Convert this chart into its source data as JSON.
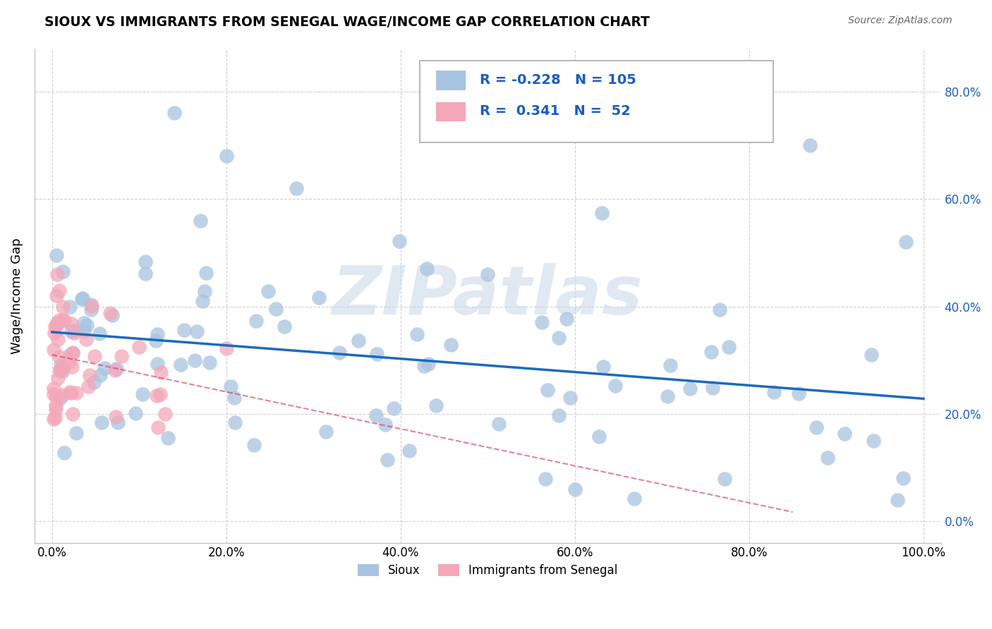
{
  "title": "SIOUX VS IMMIGRANTS FROM SENEGAL WAGE/INCOME GAP CORRELATION CHART",
  "source": "Source: ZipAtlas.com",
  "ylabel": "Wage/Income Gap",
  "watermark": "ZIPatlas",
  "sioux_R": -0.228,
  "sioux_N": 105,
  "senegal_R": 0.341,
  "senegal_N": 52,
  "sioux_color": "#a8c4e0",
  "senegal_color": "#f4a7b9",
  "sioux_line_color": "#1a6bbf",
  "senegal_line_color": "#d04060",
  "background_color": "#ffffff",
  "grid_color": "#cccccc",
  "xlim": [
    -0.02,
    1.02
  ],
  "ylim": [
    -0.04,
    0.88
  ],
  "xticks": [
    0.0,
    0.2,
    0.4,
    0.6,
    0.8,
    1.0
  ],
  "yticks": [
    0.0,
    0.2,
    0.4,
    0.6,
    0.8
  ],
  "legend_R1": "R = -0.228",
  "legend_N1": "N = 105",
  "legend_R2": "R =  0.341",
  "legend_N2": "N =  52"
}
